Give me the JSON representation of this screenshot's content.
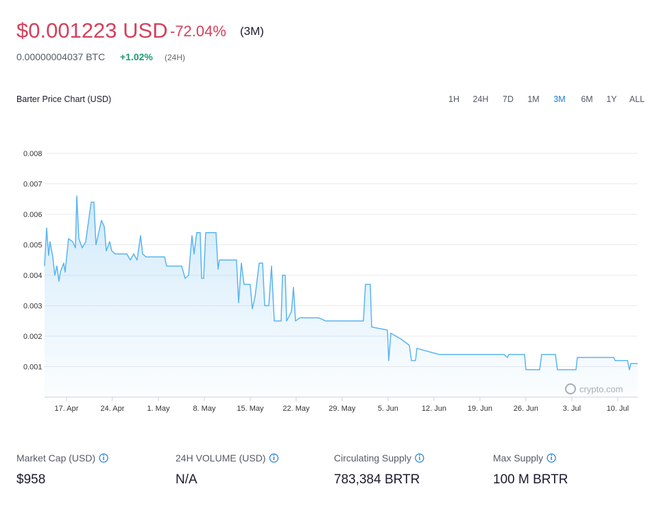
{
  "price": {
    "usd": "$0.001223 USD",
    "change": "-72.04%",
    "period": "(3M)",
    "btc": "0.00000004037 BTC",
    "btc_change": "+1.02%",
    "btc_period": "(24H)"
  },
  "ranges": [
    "1H",
    "24H",
    "7D",
    "1M",
    "3M",
    "6M",
    "1Y",
    "ALL"
  ],
  "active_range": "3M",
  "stats": [
    {
      "label": "Market Cap (USD)",
      "value": "$958"
    },
    {
      "label": "24H VOLUME (USD)",
      "value": "N/A"
    },
    {
      "label": "Circulating Supply",
      "value": "783,384 BRTR"
    },
    {
      "label": "Max Supply",
      "value": "100 M BRTR"
    }
  ],
  "chart_data": {
    "type": "line",
    "title": "Barter Price Chart (USD)",
    "watermark": "crypto.com",
    "color": "#5ab4f0",
    "grid": true,
    "x": [
      -3.34,
      -3.03,
      -2.72,
      -2.51,
      -2.09,
      -1.78,
      -1.46,
      -1.15,
      -0.94,
      -0.42,
      -0.21,
      0.31,
      0.94,
      1.36,
      1.57,
      1.88,
      2.4,
      2.93,
      3.76,
      4.18,
      4.49,
      5.33,
      5.75,
      6.06,
      6.58,
      6.9,
      7.42,
      9.2,
      9.72,
      10.24,
      10.76,
      11.29,
      11.6,
      12.12,
      14.94,
      15.26,
      17.55,
      18.08,
      18.6,
      19.12,
      19.44,
      19.85,
      20.38,
      20.59,
      20.9,
      21.21,
      22.78,
      23.09,
      23.3,
      25.91,
      26.23,
      26.65,
      27.06,
      27.48,
      28.0,
      28.32,
      28.74,
      29.36,
      29.89,
      30.2,
      30.83,
      31.24,
      31.66,
      32.71,
      32.92,
      33.33,
      33.54,
      34.27,
      34.59,
      34.9,
      35.53,
      38.45,
      39.5,
      45.25,
      45.56,
      46.29,
      46.5,
      48.9,
      49.11,
      49.43,
      51.0,
      52.25,
      52.56,
      53.19,
      53.4,
      56.74,
      66.67,
      67.19,
      67.4,
      69.8,
      70.01,
      72.1,
      72.41,
      74.5,
      74.82,
      77.64,
      77.85,
      83.39,
      83.59,
      85.48,
      85.79,
      86.0,
      87.04
    ],
    "values": [
      0.0043,
      0.00555,
      0.00465,
      0.0051,
      0.0046,
      0.004,
      0.0043,
      0.0038,
      0.0041,
      0.0044,
      0.0041,
      0.0052,
      0.0051,
      0.0049,
      0.0066,
      0.0052,
      0.0049,
      0.0051,
      0.0064,
      0.0064,
      0.005,
      0.0058,
      0.0056,
      0.0048,
      0.0051,
      0.0048,
      0.0047,
      0.0047,
      0.0045,
      0.0047,
      0.0045,
      0.0053,
      0.0047,
      0.0046,
      0.0046,
      0.0043,
      0.0043,
      0.0039,
      0.004,
      0.0053,
      0.0047,
      0.0054,
      0.0054,
      0.0039,
      0.0039,
      0.0054,
      0.0054,
      0.0042,
      0.0045,
      0.0045,
      0.0031,
      0.0044,
      0.0037,
      0.0037,
      0.0037,
      0.0029,
      0.0033,
      0.0044,
      0.0044,
      0.003,
      0.003,
      0.0043,
      0.0025,
      0.0025,
      0.004,
      0.004,
      0.0025,
      0.0028,
      0.0036,
      0.0025,
      0.0026,
      0.0026,
      0.0025,
      0.0025,
      0.0037,
      0.0037,
      0.0023,
      0.0022,
      0.0012,
      0.0021,
      0.0019,
      0.0017,
      0.0012,
      0.0012,
      0.0016,
      0.0014,
      0.0014,
      0.0013,
      0.0014,
      0.0014,
      0.0009,
      0.0009,
      0.0014,
      0.0014,
      0.0009,
      0.0009,
      0.0013,
      0.0013,
      0.0012,
      0.0012,
      0.0009,
      0.0011,
      0.0011
    ],
    "xlim": [
      -3.34,
      87.04
    ],
    "xticks": [
      {
        "value": 0,
        "label": "17. Apr"
      },
      {
        "value": 7,
        "label": "24. Apr"
      },
      {
        "value": 14,
        "label": "1. May"
      },
      {
        "value": 21,
        "label": "8. May"
      },
      {
        "value": 28,
        "label": "15. May"
      },
      {
        "value": 35,
        "label": "22. May"
      },
      {
        "value": 42,
        "label": "29. May"
      },
      {
        "value": 49,
        "label": "5. Jun"
      },
      {
        "value": 56,
        "label": "12. Jun"
      },
      {
        "value": 63,
        "label": "19. Jun"
      },
      {
        "value": 70,
        "label": "26. Jun"
      },
      {
        "value": 77,
        "label": "3. Jul"
      },
      {
        "value": 84,
        "label": "10. Jul"
      }
    ],
    "ylim": [
      0,
      0.008
    ],
    "yticks": [
      0.001,
      0.002,
      0.003,
      0.004,
      0.005,
      0.006,
      0.007,
      0.008
    ]
  }
}
